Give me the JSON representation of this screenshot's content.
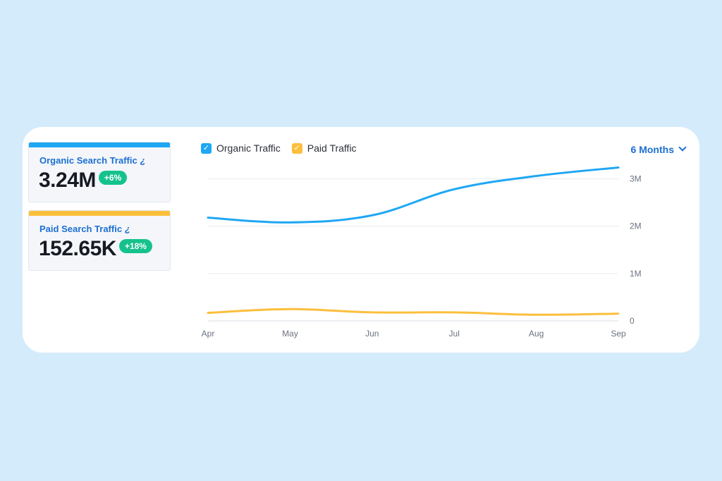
{
  "cards": {
    "organic": {
      "title": "Organic Search Traffic",
      "value": "3.24M",
      "delta": "+6%",
      "color": "#1ea7f4"
    },
    "paid": {
      "title": "Paid Search Traffic",
      "value": "152.65K",
      "delta": "+18%",
      "color": "#fbbf3c"
    },
    "info_icon": "info-icon",
    "delta_color": "#16c28b"
  },
  "period": {
    "selected": "6 Months"
  },
  "chart_data": {
    "type": "line",
    "x": [
      "Apr",
      "May",
      "Jun",
      "Jul",
      "Aug",
      "Sep"
    ],
    "series": [
      {
        "name": "Organic Traffic",
        "color": "#1ea7f4",
        "values": [
          2180000,
          2080000,
          2230000,
          2780000,
          3060000,
          3240000
        ]
      },
      {
        "name": "Paid Traffic",
        "color": "#fbbf3c",
        "values": [
          170000,
          250000,
          180000,
          180000,
          130000,
          153000
        ]
      }
    ],
    "yticks": [
      0,
      1000000,
      2000000,
      3000000
    ],
    "ytick_labels": [
      "0",
      "1M",
      "2M",
      "3M"
    ],
    "ylim": [
      0,
      3500000
    ],
    "grid": true,
    "legend": "top-left",
    "yaxis_position": "right"
  }
}
